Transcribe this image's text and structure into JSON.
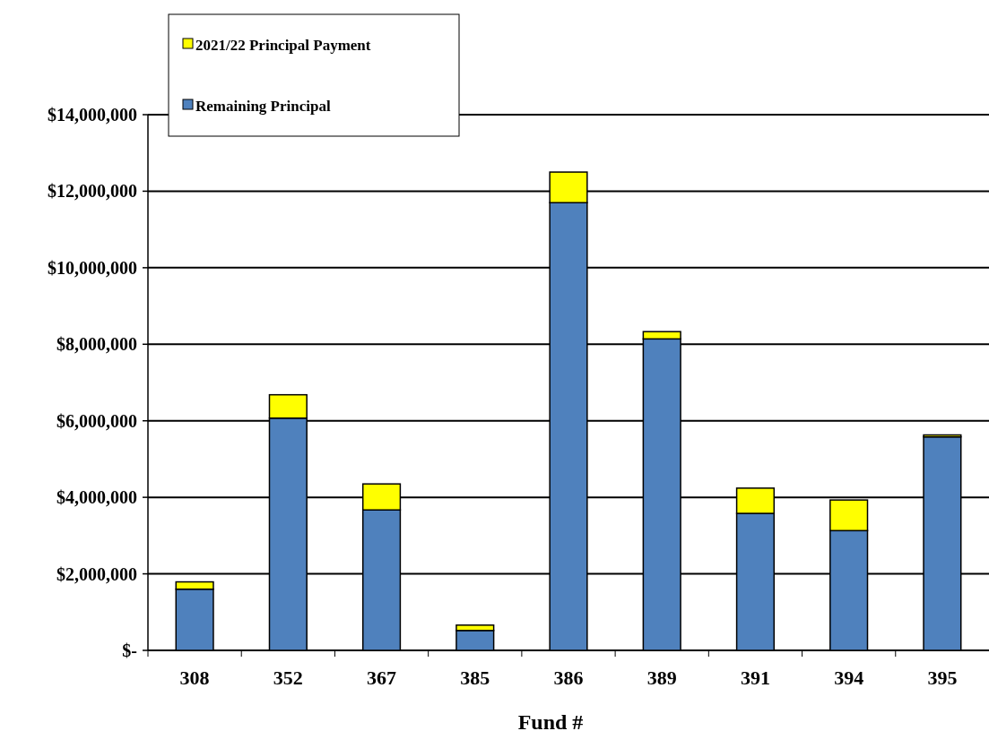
{
  "chart_data": {
    "type": "bar",
    "xlabel": "Fund #",
    "categories": [
      "308",
      "352",
      "367",
      "385",
      "386",
      "389",
      "391",
      "394",
      "395"
    ],
    "stacked": true,
    "series": [
      {
        "name": "Remaining Principal",
        "color": "#4f81bd",
        "values": [
          1600000,
          6070000,
          3670000,
          520000,
          11700000,
          8140000,
          3580000,
          3130000,
          5580000
        ]
      },
      {
        "name": "2021/22 Principal Payment",
        "color": "#ffff00",
        "values": [
          190000,
          610000,
          680000,
          140000,
          800000,
          190000,
          660000,
          800000,
          50000
        ]
      }
    ],
    "ylim": [
      0,
      14000000
    ],
    "yticks": [
      {
        "value": 0,
        "label": "$-"
      },
      {
        "value": 2000000,
        "label": "$2,000,000"
      },
      {
        "value": 4000000,
        "label": "$4,000,000"
      },
      {
        "value": 6000000,
        "label": "$6,000,000"
      },
      {
        "value": 8000000,
        "label": "$8,000,000"
      },
      {
        "value": 10000000,
        "label": "$10,000,000"
      },
      {
        "value": 12000000,
        "label": "$12,000,000"
      },
      {
        "value": 14000000,
        "label": "$14,000,000"
      }
    ],
    "grid": "y",
    "legend": "top left"
  }
}
